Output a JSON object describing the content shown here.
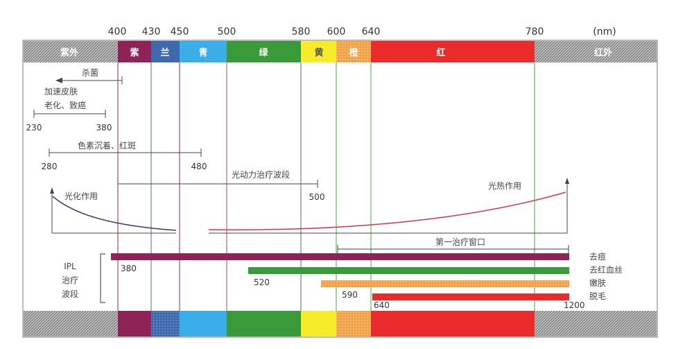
{
  "unit": "(nm)",
  "ticks": [
    "400",
    "430",
    "450",
    "500",
    "580",
    "600",
    "640",
    "780"
  ],
  "bands": [
    {
      "id": "uv",
      "label": "紫外",
      "color": "#8a8a8a",
      "hatched": true
    },
    {
      "id": "violet",
      "label": "紫",
      "color": "#8e2358"
    },
    {
      "id": "indigo",
      "label": "兰",
      "color": "#3f69ad"
    },
    {
      "id": "cyan",
      "label": "青",
      "color": "#3aaee8"
    },
    {
      "id": "green",
      "label": "绿",
      "color": "#3a9a3a"
    },
    {
      "id": "yellow",
      "label": "黄",
      "color": "#f7ec2a"
    },
    {
      "id": "orange",
      "label": "橙",
      "color": "#f5a045"
    },
    {
      "id": "red",
      "label": "红",
      "color": "#ea2b2b"
    },
    {
      "id": "ir",
      "label": "红外",
      "color": "#8a8a8a",
      "hatched": true
    }
  ],
  "annotations": {
    "sterilize": "杀菌",
    "aging_line1": "加速皮肤",
    "aging_line2": "老化、致癌",
    "aging_start": "230",
    "aging_end": "380",
    "pigment": "色素沉着、红斑",
    "pigment_start": "280",
    "pigment_end": "480",
    "pdt": "光动力治疗波段",
    "pdt_end": "500",
    "photochem": "光化作用",
    "photothermal": "光热作用",
    "first_window": "第一治疗窗口",
    "ipl_line1": "IPL",
    "ipl_line2": "治疗",
    "ipl_line3": "波段"
  },
  "ipl_bars": [
    {
      "label": "去痘",
      "start": "380",
      "color": "#8e2358"
    },
    {
      "label": "去红血丝",
      "start": "520",
      "color": "#3a9a3a"
    },
    {
      "label": "嫩肤",
      "start": "590",
      "color": "#f5a045"
    },
    {
      "label": "脱毛",
      "start": "640",
      "end": "1200",
      "color": "#ea2b2b"
    }
  ]
}
